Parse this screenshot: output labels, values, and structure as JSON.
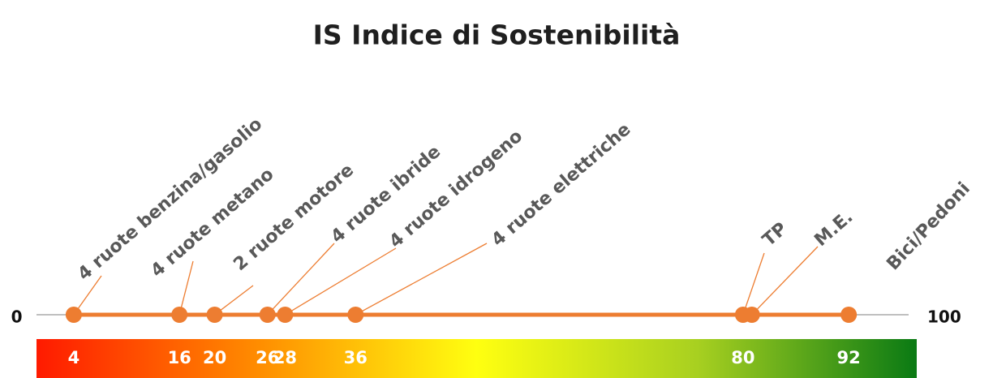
{
  "chart_data": {
    "type": "dot-scale",
    "title": "IS Indice di Sostenibilità",
    "categories": [
      "4 ruote benzina/gasolio",
      "4 ruote metano",
      "2 ruote motore",
      "4 ruote ibride",
      "4 ruote idrogeno",
      "4 ruote elettriche",
      "TP",
      "M.E.",
      "Bici/Pedoni"
    ],
    "values": [
      4,
      16,
      20,
      26,
      28,
      36,
      80,
      81,
      92
    ],
    "value_labels": [
      "4",
      "16",
      "20",
      "26",
      "28",
      "36",
      "80",
      null,
      "92"
    ],
    "color": "#ed7d31",
    "xlim": [
      0,
      100
    ],
    "xticks": [
      0,
      100
    ]
  }
}
